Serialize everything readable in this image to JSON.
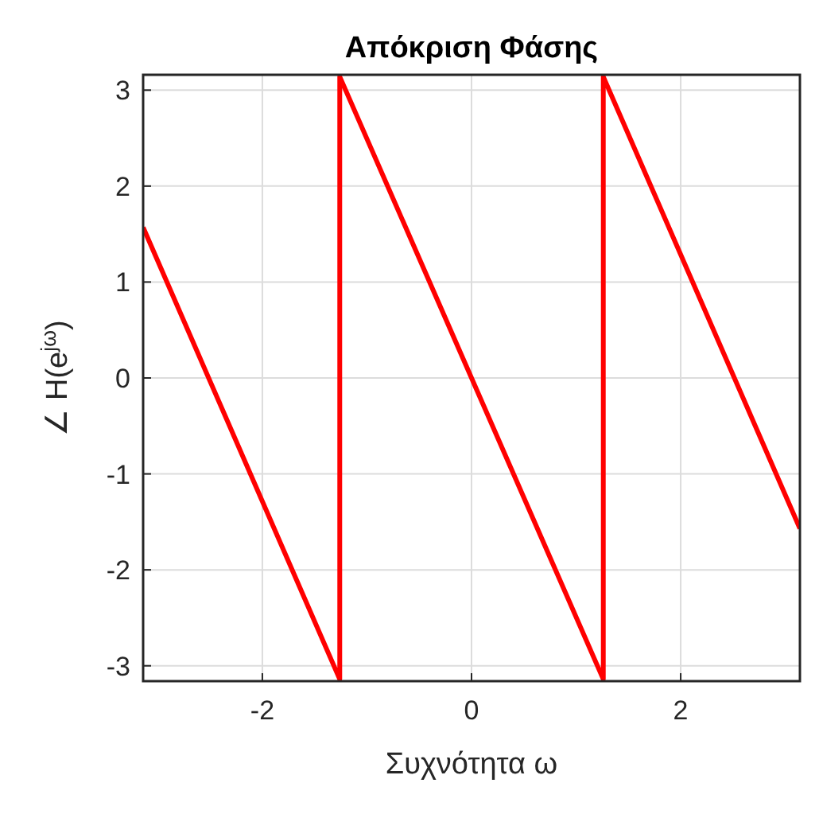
{
  "chart_data": {
    "type": "line",
    "title": "Απόκριση Φάσης",
    "xlabel": "Συχνότητα ω",
    "ylabel": "∠ H(e$^{jω}$)",
    "x": [
      -3.14,
      -1.26,
      -1.26,
      1.26,
      1.26,
      3.14
    ],
    "series": [
      {
        "color": "#ff0000",
        "values": [
          1.57,
          -3.14,
          3.14,
          -3.14,
          3.14,
          -1.57
        ]
      }
    ],
    "xlim": [
      -3.14,
      3.14
    ],
    "xticks": [
      -2,
      0,
      2
    ],
    "ylim": [
      -3.16,
      3.16
    ],
    "yticks": [
      -3,
      -2,
      -1,
      0,
      1,
      2,
      3
    ],
    "grid": true,
    "line_style": "solid"
  }
}
